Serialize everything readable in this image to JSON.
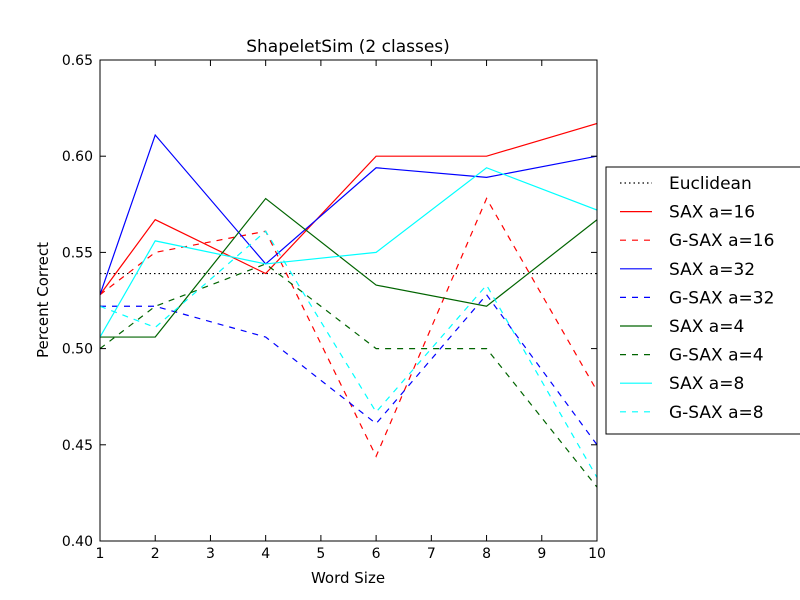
{
  "chart_data": {
    "type": "line",
    "title": "ShapeletSim (2 classes)",
    "xlabel": "Word Size",
    "ylabel": "Percent Correct",
    "xlim": [
      1,
      10
    ],
    "ylim": [
      0.4,
      0.65
    ],
    "xticks": [
      1,
      2,
      3,
      4,
      5,
      6,
      7,
      8,
      9,
      10
    ],
    "yticks": [
      0.4,
      0.45,
      0.5,
      0.55,
      0.6,
      0.65
    ],
    "ytick_labels": [
      "0.40",
      "0.45",
      "0.50",
      "0.55",
      "0.60",
      "0.65"
    ],
    "grid": false,
    "legend_position": "outside-right",
    "series": [
      {
        "name": "Euclidean",
        "color": "#000000",
        "style": "dotted",
        "x": [
          1,
          10
        ],
        "y": [
          0.539,
          0.539
        ]
      },
      {
        "name": "SAX a=16",
        "color": "#ff0000",
        "style": "solid",
        "x": [
          1,
          2,
          4,
          6,
          8,
          10
        ],
        "y": [
          0.528,
          0.567,
          0.539,
          0.6,
          0.6,
          0.617
        ]
      },
      {
        "name": "G-SAX a=16",
        "color": "#ff0000",
        "style": "dashed",
        "x": [
          1,
          2,
          4,
          6,
          8,
          10
        ],
        "y": [
          0.528,
          0.55,
          0.561,
          0.444,
          0.578,
          0.478
        ]
      },
      {
        "name": "SAX a=32",
        "color": "#0000ff",
        "style": "solid",
        "x": [
          1,
          2,
          4,
          6,
          8,
          10
        ],
        "y": [
          0.528,
          0.611,
          0.544,
          0.594,
          0.589,
          0.6
        ]
      },
      {
        "name": "G-SAX a=32",
        "color": "#0000ff",
        "style": "dashed",
        "x": [
          1,
          2,
          4,
          6,
          8,
          10
        ],
        "y": [
          0.522,
          0.522,
          0.506,
          0.461,
          0.528,
          0.45
        ]
      },
      {
        "name": "SAX a=4",
        "color": "#006400",
        "style": "solid",
        "x": [
          1,
          2,
          4,
          6,
          8,
          10
        ],
        "y": [
          0.506,
          0.506,
          0.578,
          0.533,
          0.522,
          0.567
        ]
      },
      {
        "name": "G-SAX a=4",
        "color": "#006400",
        "style": "dashed",
        "x": [
          1,
          2,
          4,
          6,
          8,
          10
        ],
        "y": [
          0.5,
          0.522,
          0.544,
          0.5,
          0.5,
          0.428
        ]
      },
      {
        "name": "SAX a=8",
        "color": "#00ffff",
        "style": "solid",
        "x": [
          1,
          2,
          4,
          6,
          8,
          10
        ],
        "y": [
          0.506,
          0.556,
          0.544,
          0.55,
          0.594,
          0.572
        ]
      },
      {
        "name": "G-SAX a=8",
        "color": "#00ffff",
        "style": "dashed",
        "x": [
          1,
          2,
          4,
          6,
          8,
          10
        ],
        "y": [
          0.522,
          0.511,
          0.561,
          0.467,
          0.533,
          0.433
        ]
      }
    ]
  }
}
